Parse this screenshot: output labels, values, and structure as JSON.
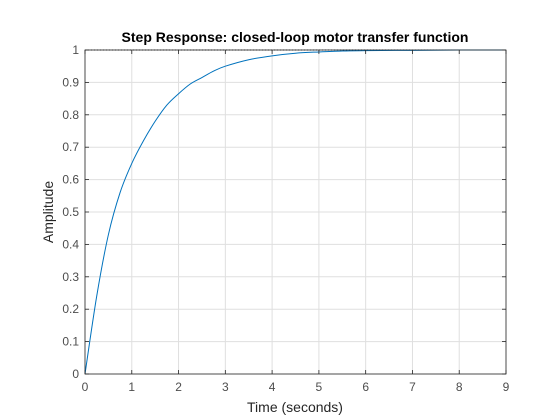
{
  "chart_data": {
    "type": "line",
    "title": "Step Response: closed-loop motor transfer function",
    "xlabel": "Time (seconds)",
    "ylabel": "Amplitude",
    "xlim": [
      0,
      9
    ],
    "ylim": [
      0,
      1
    ],
    "xticks": [
      "0",
      "1",
      "2",
      "3",
      "4",
      "5",
      "6",
      "7",
      "8",
      "9"
    ],
    "yticks": [
      "0",
      "0.1",
      "0.2",
      "0.3",
      "0.4",
      "0.5",
      "0.6",
      "0.7",
      "0.8",
      "0.9",
      "1"
    ],
    "grid": true,
    "steady_state": 1,
    "series": [
      {
        "color": "#0072bd",
        "x": [
          0,
          0.25,
          0.5,
          0.75,
          1.0,
          1.25,
          1.5,
          1.75,
          2.0,
          2.25,
          2.5,
          2.75,
          3.0,
          3.5,
          4.0,
          4.5,
          5.0,
          5.5,
          6.0,
          7.0,
          8.0,
          9.0
        ],
        "y": [
          0,
          0.24,
          0.43,
          0.56,
          0.65,
          0.72,
          0.78,
          0.83,
          0.865,
          0.895,
          0.915,
          0.935,
          0.95,
          0.97,
          0.982,
          0.99,
          0.994,
          0.997,
          0.998,
          0.999,
          1.0,
          1.0
        ]
      }
    ]
  }
}
